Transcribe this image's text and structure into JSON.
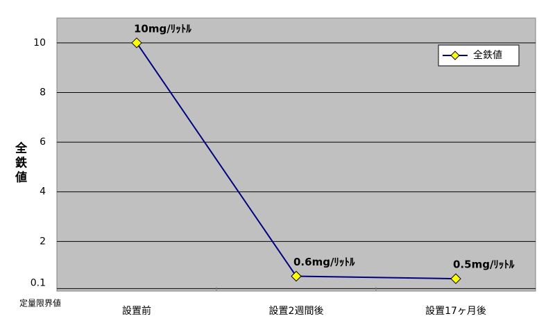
{
  "chart_data": {
    "type": "line",
    "y_label": "全鉄値",
    "annotation": "定量限界値",
    "categories": [
      "設置前",
      "設置2週間後",
      "設置17ヶ月後"
    ],
    "series": [
      {
        "name": "全鉄値",
        "color": "#000080",
        "marker_color": "#ffff00",
        "values": [
          10,
          0.6,
          0.5
        ],
        "value_labels": [
          "10mg/ﾘｯﾄﾙ",
          "0.6mg/ﾘｯﾄﾙ",
          "0.5mg/ﾘｯﾄﾙ"
        ]
      }
    ],
    "ylim": [
      0,
      11
    ],
    "yticks": [
      0.1,
      2,
      4,
      6,
      8,
      10
    ],
    "grid": true,
    "legend": "top-right"
  }
}
